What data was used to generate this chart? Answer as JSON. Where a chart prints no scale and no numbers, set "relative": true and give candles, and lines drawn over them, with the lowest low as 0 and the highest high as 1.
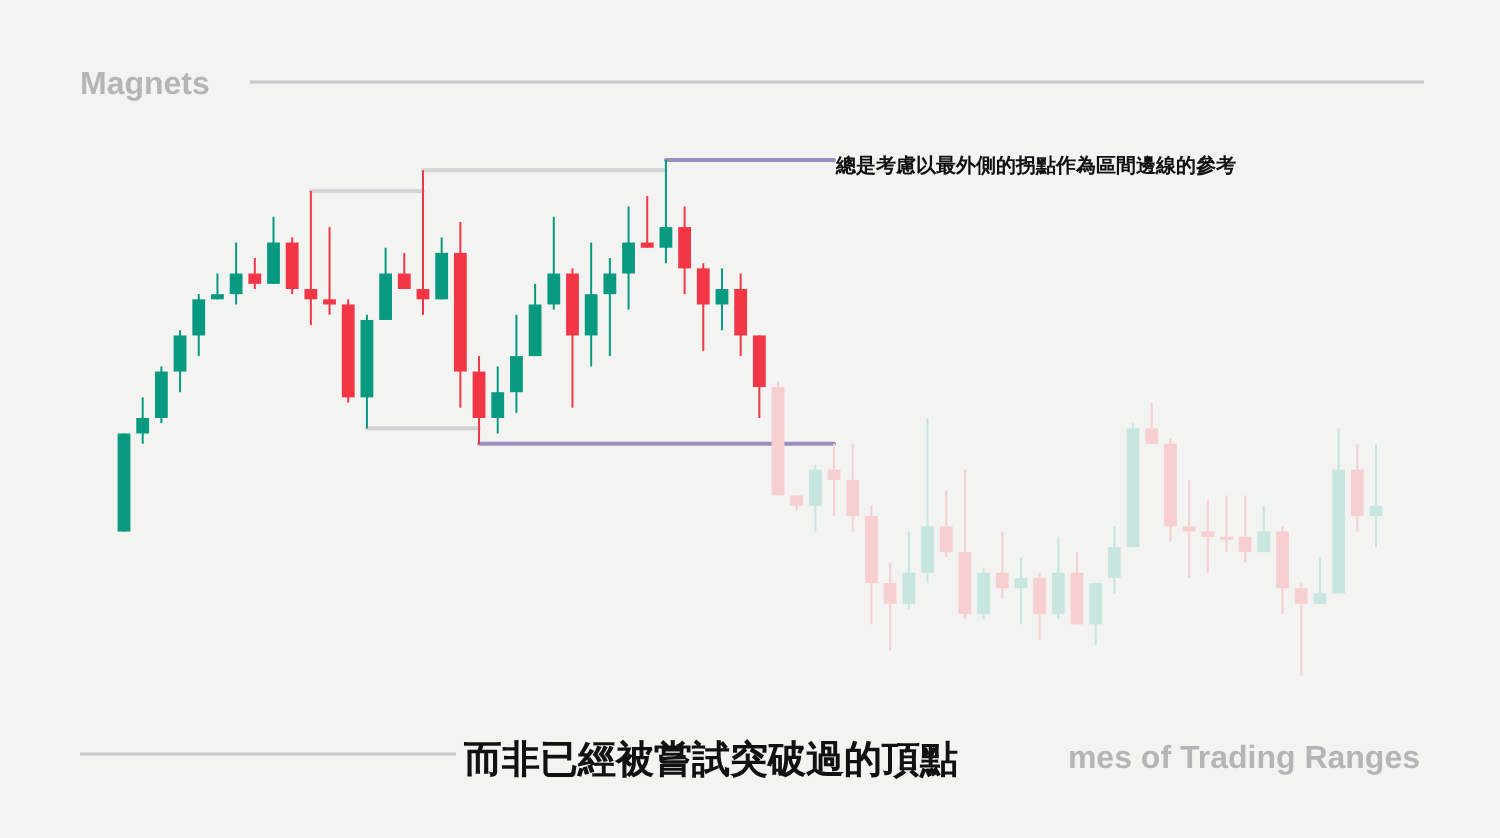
{
  "chart_data": {
    "type": "candlestick",
    "title": "Magnets",
    "relative": true,
    "categories": [
      null,
      null,
      null,
      null,
      null,
      null,
      null,
      null,
      null,
      null,
      null,
      null,
      null,
      null,
      null,
      null,
      null,
      null,
      null,
      null,
      null,
      null,
      null,
      null,
      null,
      null,
      null,
      null,
      null,
      null,
      null,
      null,
      null,
      null,
      null,
      null,
      null,
      null,
      null,
      null,
      null,
      null,
      null,
      null,
      null,
      null,
      null,
      null,
      null,
      null,
      null,
      null,
      null,
      null,
      null,
      null,
      null,
      null,
      null,
      null,
      null,
      null,
      null,
      null,
      null,
      null,
      null,
      null
    ],
    "ohlc": [
      [
        0.28,
        0.47,
        0.28,
        0.47
      ],
      [
        0.47,
        0.54,
        0.45,
        0.5
      ],
      [
        0.5,
        0.6,
        0.49,
        0.59
      ],
      [
        0.59,
        0.67,
        0.55,
        0.66
      ],
      [
        0.66,
        0.74,
        0.62,
        0.73
      ],
      [
        0.73,
        0.78,
        0.73,
        0.74
      ],
      [
        0.74,
        0.84,
        0.72,
        0.78
      ],
      [
        0.78,
        0.81,
        0.75,
        0.76
      ],
      [
        0.76,
        0.89,
        0.76,
        0.84
      ],
      [
        0.84,
        0.85,
        0.74,
        0.75
      ],
      [
        0.75,
        0.94,
        0.68,
        0.73
      ],
      [
        0.73,
        0.87,
        0.7,
        0.72
      ],
      [
        0.72,
        0.73,
        0.53,
        0.54
      ],
      [
        0.54,
        0.7,
        0.48,
        0.69
      ],
      [
        0.69,
        0.83,
        0.69,
        0.78
      ],
      [
        0.78,
        0.82,
        0.75,
        0.75
      ],
      [
        0.75,
        0.98,
        0.7,
        0.73
      ],
      [
        0.73,
        0.85,
        0.73,
        0.82
      ],
      [
        0.82,
        0.88,
        0.52,
        0.59
      ],
      [
        0.59,
        0.62,
        0.45,
        0.5
      ],
      [
        0.5,
        0.6,
        0.47,
        0.55
      ],
      [
        0.55,
        0.7,
        0.51,
        0.62
      ],
      [
        0.62,
        0.76,
        0.62,
        0.72
      ],
      [
        0.72,
        0.89,
        0.71,
        0.78
      ],
      [
        0.78,
        0.79,
        0.52,
        0.66
      ],
      [
        0.66,
        0.84,
        0.6,
        0.74
      ],
      [
        0.74,
        0.81,
        0.62,
        0.78
      ],
      [
        0.78,
        0.91,
        0.71,
        0.84
      ],
      [
        0.84,
        0.93,
        0.83,
        0.83
      ],
      [
        0.83,
        1,
        0.8,
        0.87
      ],
      [
        0.87,
        0.91,
        0.74,
        0.79
      ],
      [
        0.79,
        0.8,
        0.63,
        0.72
      ],
      [
        0.72,
        0.79,
        0.67,
        0.75
      ],
      [
        0.75,
        0.78,
        0.62,
        0.66
      ],
      [
        0.66,
        0.66,
        0.5,
        0.56
      ],
      [
        0.56,
        0.57,
        0.35,
        0.35
      ],
      [
        0.35,
        0.35,
        0.32,
        0.33
      ],
      [
        0.33,
        0.41,
        0.28,
        0.4
      ],
      [
        0.4,
        0.45,
        0.31,
        0.38
      ],
      [
        0.38,
        0.45,
        0.28,
        0.31
      ],
      [
        0.31,
        0.33,
        0.1,
        0.18
      ],
      [
        0.18,
        0.22,
        0.05,
        0.14
      ],
      [
        0.14,
        0.28,
        0.13,
        0.2
      ],
      [
        0.2,
        0.5,
        0.18,
        0.29
      ],
      [
        0.29,
        0.36,
        0.23,
        0.24
      ],
      [
        0.24,
        0.4,
        0.11,
        0.12
      ],
      [
        0.12,
        0.21,
        0.11,
        0.2
      ],
      [
        0.2,
        0.28,
        0.15,
        0.17
      ],
      [
        0.17,
        0.23,
        0.1,
        0.19
      ],
      [
        0.19,
        0.2,
        0.07,
        0.12
      ],
      [
        0.12,
        0.27,
        0.11,
        0.2
      ],
      [
        0.2,
        0.24,
        0.1,
        0.1
      ],
      [
        0.1,
        0.18,
        0.06,
        0.18
      ],
      [
        0.19,
        0.29,
        0.16,
        0.25
      ],
      [
        0.25,
        0.49,
        0.25,
        0.48
      ],
      [
        0.48,
        0.53,
        0.45,
        0.45
      ],
      [
        0.45,
        0.46,
        0.26,
        0.29
      ],
      [
        0.29,
        0.38,
        0.19,
        0.28
      ],
      [
        0.28,
        0.34,
        0.2,
        0.27
      ],
      [
        0.27,
        0.35,
        0.24,
        0.27
      ],
      [
        0.27,
        0.35,
        0.22,
        0.24
      ],
      [
        0.24,
        0.33,
        0.24,
        0.28
      ],
      [
        0.28,
        0.29,
        0.12,
        0.17
      ],
      [
        0.17,
        0.18,
        0,
        0.14
      ],
      [
        0.14,
        0.23,
        0.14,
        0.16
      ],
      [
        0.16,
        0.48,
        0.16,
        0.4
      ],
      [
        0.4,
        0.45,
        0.28,
        0.31
      ],
      [
        0.31,
        0.45,
        0.25,
        0.33
      ]
    ],
    "colors": [
      "#089981",
      "#089981",
      "#089981",
      "#089981",
      "#089981",
      "#089981",
      "#089981",
      "#f23645",
      "#089981",
      "#f23645",
      "#f23645",
      "#f23645",
      "#f23645",
      "#089981",
      "#089981",
      "#f23645",
      "#f23645",
      "#089981",
      "#f23645",
      "#f23645",
      "#089981",
      "#089981",
      "#089981",
      "#089981",
      "#f23645",
      "#089981",
      "#089981",
      "#089981",
      "#f23645",
      "#089981",
      "#f23645",
      "#f23645",
      "#089981",
      "#f23645",
      "#f23645",
      "#f8cfd1",
      "#f8cfd1",
      "#c6e6df",
      "#f8cfd1",
      "#f8cfd1",
      "#f8cfd1",
      "#f8cfd1",
      "#c6e6df",
      "#c6e6df",
      "#f8cfd1",
      "#f8cfd1",
      "#c6e6df",
      "#f8cfd1",
      "#c6e6df",
      "#f8cfd1",
      "#c6e6df",
      "#f8cfd1",
      "#c6e6df",
      "#c6e6df",
      "#c6e6df",
      "#f8cfd1",
      "#f8cfd1",
      "#f8cfd1",
      "#f8cfd1",
      "#f8cfd1",
      "#f8cfd1",
      "#c6e6df",
      "#f8cfd1",
      "#f8cfd1",
      "#c6e6df",
      "#c6e6df",
      "#f8cfd1",
      "#c6e6df"
    ],
    "series": [
      {
        "type": "line",
        "color": "#d4d4d4",
        "values": [
          null,
          null,
          null,
          null,
          null,
          null,
          null,
          null,
          null,
          null,
          0.94,
          0.94,
          0.94,
          0.94,
          0.94,
          0.94,
          0.94,
          null,
          null,
          null,
          null,
          null,
          null,
          null,
          null,
          null,
          null,
          null,
          null,
          null,
          null,
          null,
          null,
          null,
          null,
          null,
          null,
          null,
          null,
          null,
          null,
          null,
          null,
          null,
          null,
          null,
          null,
          null,
          null,
          null,
          null,
          null,
          null,
          null,
          null,
          null,
          null,
          null,
          null,
          null,
          null,
          null,
          null,
          null,
          null,
          null,
          null,
          null
        ]
      },
      {
        "type": "line",
        "color": "#d4d4d4",
        "values": [
          null,
          null,
          null,
          null,
          null,
          null,
          null,
          null,
          null,
          null,
          null,
          null,
          null,
          null,
          null,
          null,
          0.98,
          0.98,
          0.98,
          0.98,
          0.98,
          0.98,
          0.98,
          0.98,
          0.98,
          0.98,
          0.98,
          0.98,
          0.98,
          0.98,
          null,
          null,
          null,
          null,
          null,
          null,
          null,
          null,
          null,
          null,
          null,
          null,
          null,
          null,
          null,
          null,
          null,
          null,
          null,
          null,
          null,
          null,
          null,
          null,
          null,
          null,
          null,
          null,
          null,
          null,
          null,
          null,
          null,
          null,
          null,
          null,
          null,
          null
        ]
      },
      {
        "type": "line",
        "color": "#9b8fc0",
        "values": [
          null,
          null,
          null,
          null,
          null,
          null,
          null,
          null,
          null,
          null,
          null,
          null,
          null,
          null,
          null,
          null,
          null,
          null,
          null,
          null,
          null,
          null,
          null,
          null,
          null,
          null,
          null,
          null,
          null,
          1,
          1,
          1,
          1,
          1,
          1,
          1,
          1,
          1,
          1,
          null,
          null,
          null,
          null,
          null,
          null,
          null,
          null,
          null,
          null,
          null,
          null,
          null,
          null,
          null,
          null,
          null,
          null,
          null,
          null,
          null,
          null,
          null,
          null,
          null,
          null,
          null,
          null,
          null
        ]
      },
      {
        "type": "line",
        "color": "#d4d4d4",
        "values": [
          null,
          null,
          null,
          null,
          null,
          null,
          null,
          null,
          null,
          null,
          null,
          null,
          null,
          0.48,
          0.48,
          0.48,
          0.48,
          0.48,
          0.48,
          0.48,
          null,
          null,
          null,
          null,
          null,
          null,
          null,
          null,
          null,
          null,
          null,
          null,
          null,
          null,
          null,
          null,
          null,
          null,
          null,
          null,
          null,
          null,
          null,
          null,
          null,
          null,
          null,
          null,
          null,
          null,
          null,
          null,
          null,
          null,
          null,
          null,
          null,
          null,
          null,
          null,
          null,
          null,
          null,
          null,
          null,
          null,
          null,
          null
        ]
      },
      {
        "type": "line",
        "color": "#9b8fc0",
        "values": [
          null,
          null,
          null,
          null,
          null,
          null,
          null,
          null,
          null,
          null,
          null,
          null,
          null,
          null,
          null,
          null,
          null,
          null,
          null,
          0.45,
          0.45,
          0.45,
          0.45,
          0.45,
          0.45,
          0.45,
          0.45,
          0.45,
          0.45,
          0.45,
          0.45,
          0.45,
          0.45,
          0.45,
          0.45,
          0.45,
          0.45,
          0.45,
          0.45,
          null,
          null,
          null,
          null,
          null,
          null,
          null,
          null,
          null,
          null,
          null,
          null,
          null,
          null,
          null,
          null,
          null,
          null,
          null,
          null,
          null,
          null,
          null,
          null,
          null,
          null,
          null,
          null,
          null
        ]
      }
    ],
    "annotations": [
      "總是考慮以最外側的拐點作為區間邊線的參考",
      "而非已經被嘗試突破過的頂點",
      "mes of Trading Ranges"
    ]
  }
}
